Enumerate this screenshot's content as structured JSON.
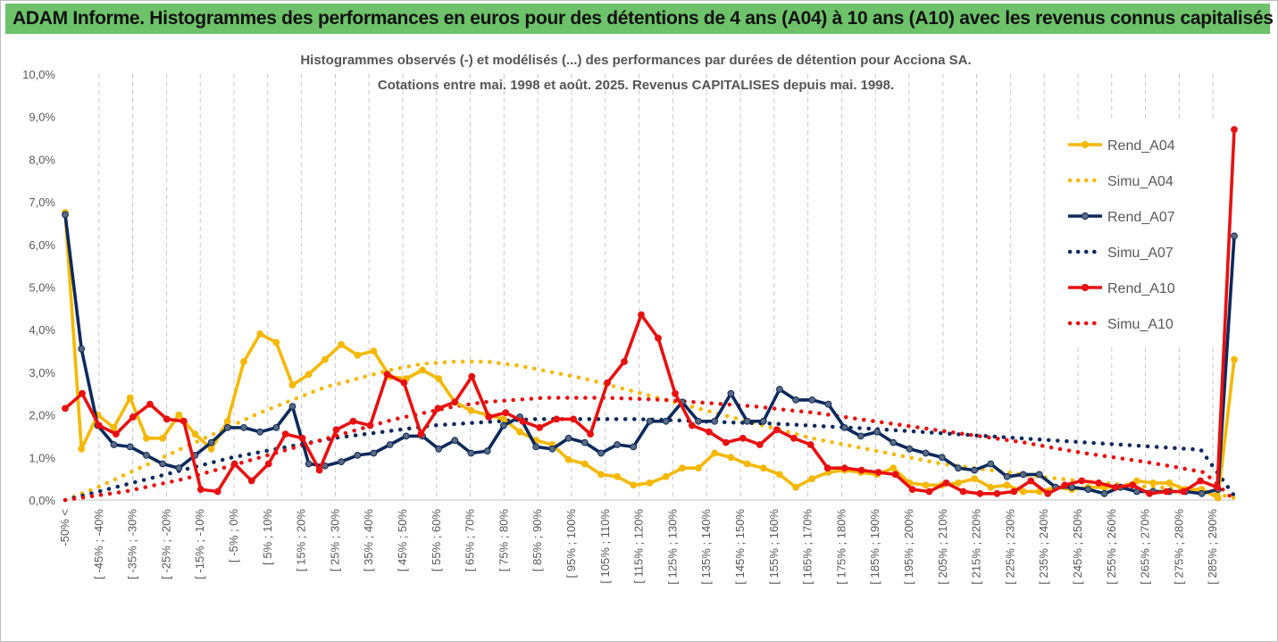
{
  "banner": {
    "title": "ADAM Informe. Histogrammes des performances en euros pour des détentions de 4 ans (A04) à 10 ans (A10) avec les revenus connus capitalisés",
    "color": "#6dc26a"
  },
  "chart_data": {
    "type": "line",
    "title": "Histogrammes observés (-) et modélisés (...) des performances par durées de détention pour Acciona SA.",
    "subtitle": "Cotations entre mai. 1998 et août. 2025. Revenus CAPITALISES depuis mai. 1998.",
    "ylim": [
      0,
      10
    ],
    "y_ticks": [
      "0,0%",
      "1,0%",
      "2,0%",
      "3,0%",
      "4,0%",
      "5,0%",
      "6,0%",
      "7,0%",
      "8,0%",
      "9,0%",
      "10,0%"
    ],
    "grid": "vertical dashed",
    "legend_position": "right",
    "x_labels": [
      "-50% <",
      "[ -45% ; -40%",
      "[ -35% ; -30%",
      "[ -25% ; -20%",
      "[ -15% ; -10%",
      "[ -5% ; 0%",
      "[ 5% ; 10%",
      "[ 15% ; 20%",
      "[ 25% ; 30%",
      "[ 35% ; 40%",
      "[ 45% ; 50%",
      "[ 55% ; 60%",
      "[ 65% ; 70%",
      "[ 75% ; 80%",
      "[ 85% ; 90%",
      "[ 95% ; 100%",
      "[ 105% ; 110%",
      "[ 115% ; 120%",
      "[ 125% ; 130%",
      "[ 135% ; 140%",
      "[ 145% ; 150%",
      "[ 155% ; 160%",
      "[ 165% ; 170%",
      "[ 175% ; 180%",
      "[ 185% ; 190%",
      "[ 195% ; 200%",
      "[ 205% ; 210%",
      "[ 215% ; 220%",
      "[ 225% ; 230%",
      "[ 235% ; 240%",
      "[ 245% ; 250%",
      "[ 255% ; 260%",
      "[ 265% ; 270%",
      "[ 275% ; 280%",
      "[ 285% ; 290%"
    ],
    "series": [
      {
        "name": "Rend_A04",
        "color": "#f5b800",
        "style": "solid",
        "markers": true,
        "values": [
          6.75,
          1.2,
          2.0,
          1.7,
          2.4,
          1.45,
          1.45,
          2.0,
          1.55,
          1.2,
          1.85,
          3.25,
          3.9,
          3.7,
          2.7,
          2.95,
          3.3,
          3.65,
          3.4,
          3.5,
          2.9,
          2.85,
          3.05,
          2.85,
          2.3,
          2.1,
          2.0,
          1.9,
          1.6,
          1.4,
          1.3,
          0.95,
          0.85,
          0.6,
          0.55,
          0.35,
          0.4,
          0.55,
          0.75,
          0.75,
          1.1,
          1.0,
          0.85,
          0.75,
          0.6,
          0.3,
          0.5,
          0.65,
          0.7,
          0.65,
          0.6,
          0.75,
          0.4,
          0.35,
          0.35,
          0.4,
          0.5,
          0.3,
          0.35,
          0.2,
          0.2,
          0.3,
          0.25,
          0.3,
          0.3,
          0.3,
          0.45,
          0.4,
          0.4,
          0.25,
          0.25,
          0.05,
          3.3
        ]
      },
      {
        "name": "Simu_A04",
        "color": "#f5b800",
        "style": "dotted",
        "markers": false,
        "values": [
          0.0,
          0.3,
          0.65,
          1.0,
          1.35,
          1.7,
          2.05,
          2.35,
          2.65,
          2.85,
          3.05,
          3.2,
          3.25,
          3.25,
          3.15,
          3.0,
          2.85,
          2.65,
          2.45,
          2.25,
          2.05,
          1.85,
          1.65,
          1.45,
          1.3,
          1.15,
          1.0,
          0.85,
          0.75,
          0.65,
          0.55,
          0.47,
          0.4,
          0.33,
          0.28,
          0.22,
          0.05
        ]
      },
      {
        "name": "Rend_A07",
        "color": "#0d2a5c",
        "style": "solid",
        "markers": true,
        "values": [
          6.7,
          3.55,
          1.75,
          1.3,
          1.25,
          1.05,
          0.85,
          0.75,
          1.05,
          1.35,
          1.7,
          1.7,
          1.6,
          1.7,
          2.2,
          0.85,
          0.8,
          0.9,
          1.05,
          1.1,
          1.3,
          1.5,
          1.5,
          1.2,
          1.4,
          1.1,
          1.15,
          1.75,
          1.95,
          1.25,
          1.2,
          1.45,
          1.35,
          1.1,
          1.3,
          1.25,
          1.85,
          1.85,
          2.3,
          1.85,
          1.85,
          2.5,
          1.85,
          1.85,
          2.6,
          2.35,
          2.35,
          2.25,
          1.7,
          1.5,
          1.6,
          1.35,
          1.2,
          1.1,
          1.0,
          0.75,
          0.7,
          0.85,
          0.55,
          0.6,
          0.6,
          0.3,
          0.3,
          0.25,
          0.15,
          0.3,
          0.2,
          0.2,
          0.2,
          0.2,
          0.15,
          0.25,
          6.2
        ]
      },
      {
        "name": "Simu_A07",
        "color": "#0d2a5c",
        "style": "dotted",
        "markers": false,
        "values": [
          0.0,
          0.2,
          0.4,
          0.6,
          0.8,
          1.0,
          1.15,
          1.3,
          1.45,
          1.55,
          1.65,
          1.75,
          1.8,
          1.85,
          1.9,
          1.9,
          1.9,
          1.9,
          1.88,
          1.85,
          1.82,
          1.8,
          1.76,
          1.72,
          1.68,
          1.63,
          1.58,
          1.53,
          1.48,
          1.43,
          1.38,
          1.33,
          1.28,
          1.23,
          1.18,
          0.1
        ]
      },
      {
        "name": "Rend_A10",
        "color": "#e81010",
        "style": "solid",
        "markers": true,
        "values": [
          2.15,
          2.5,
          1.75,
          1.55,
          1.95,
          2.25,
          1.9,
          1.85,
          0.25,
          0.2,
          0.85,
          0.45,
          0.85,
          1.55,
          1.45,
          0.7,
          1.65,
          1.85,
          1.75,
          2.95,
          2.75,
          1.55,
          2.15,
          2.3,
          2.9,
          1.95,
          2.05,
          1.85,
          1.7,
          1.9,
          1.9,
          1.55,
          2.75,
          3.25,
          4.35,
          3.8,
          2.5,
          1.75,
          1.6,
          1.35,
          1.45,
          1.3,
          1.65,
          1.45,
          1.3,
          0.75,
          0.75,
          0.7,
          0.65,
          0.6,
          0.25,
          0.2,
          0.4,
          0.2,
          0.15,
          0.15,
          0.2,
          0.45,
          0.15,
          0.35,
          0.45,
          0.4,
          0.3,
          0.35,
          0.15,
          0.2,
          0.2,
          0.45,
          0.3,
          8.7
        ]
      },
      {
        "name": "Simu_A10",
        "color": "#e81010",
        "style": "dotted",
        "markers": false,
        "values": [
          0.0,
          0.1,
          0.2,
          0.35,
          0.5,
          0.7,
          0.9,
          1.1,
          1.3,
          1.5,
          1.7,
          1.9,
          2.05,
          2.2,
          2.3,
          2.35,
          2.4,
          2.4,
          2.4,
          2.38,
          2.35,
          2.3,
          2.25,
          2.2,
          2.12,
          2.05,
          1.95,
          1.85,
          1.75,
          1.65,
          1.55,
          1.45,
          1.35,
          1.22,
          1.1,
          1.0,
          0.9,
          0.78,
          0.65,
          0.0
        ]
      }
    ]
  }
}
